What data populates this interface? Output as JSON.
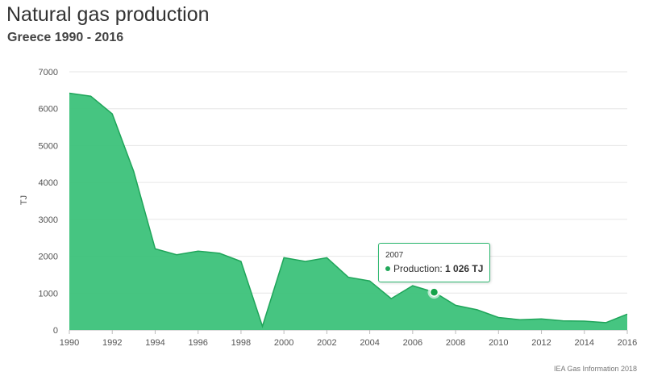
{
  "title": "Natural gas production",
  "subtitle": "Greece 1990 - 2016",
  "credit": "IEA Gas Information 2018",
  "colors": {
    "area": "#3cc27a",
    "line": "#1fa55a",
    "grid": "#e6e6e6"
  },
  "tooltip": {
    "year": "2007",
    "series_label": "Production:",
    "value_label": "1 026 TJ"
  },
  "chart_data": {
    "type": "area",
    "ylabel": "TJ",
    "ylim": [
      0,
      7000
    ],
    "xlim": [
      1990,
      2016
    ],
    "x_ticks": [
      1990,
      1992,
      1994,
      1996,
      1998,
      2000,
      2002,
      2004,
      2006,
      2008,
      2010,
      2012,
      2014,
      2016
    ],
    "y_ticks": [
      0,
      1000,
      2000,
      3000,
      4000,
      5000,
      6000,
      7000
    ],
    "grid": true,
    "series": [
      {
        "x": [
          1990,
          1991,
          1992,
          1993,
          1994,
          1995,
          1996,
          1997,
          1998,
          1999,
          2000,
          2001,
          2002,
          2003,
          2004,
          2005,
          2006,
          2007,
          2008,
          2009,
          2010,
          2011,
          2012,
          2013,
          2014,
          2015,
          2016
        ],
        "y": [
          6420,
          6340,
          5860,
          4300,
          2200,
          2040,
          2140,
          2080,
          1860,
          100,
          1960,
          1860,
          1960,
          1430,
          1330,
          850,
          1200,
          1026,
          670,
          550,
          340,
          280,
          300,
          250,
          240,
          200,
          430
        ]
      }
    ],
    "highlight_x": 2007
  }
}
